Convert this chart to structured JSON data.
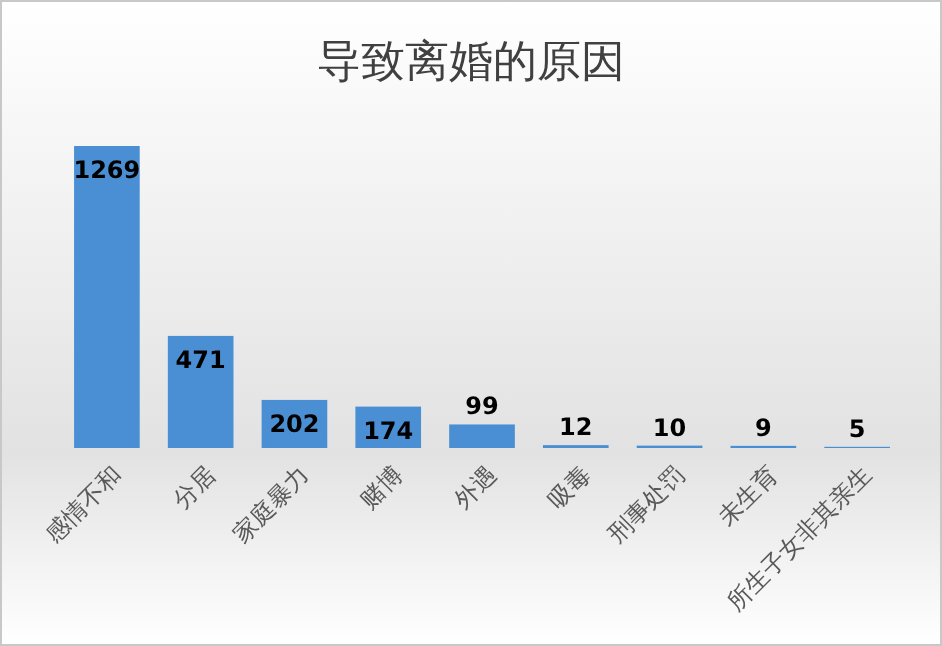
{
  "chart_data": {
    "type": "bar",
    "title": "导致离婚的原因",
    "categories": [
      "感情不和",
      "分居",
      "家庭暴力",
      "赌博",
      "外遇",
      "吸毒",
      "刑事处罚",
      "未生育",
      "所生子女非其亲生"
    ],
    "values": [
      1269,
      471,
      202,
      174,
      99,
      12,
      10,
      9,
      5
    ],
    "color": "#4a8fd4",
    "data_labels": true
  }
}
